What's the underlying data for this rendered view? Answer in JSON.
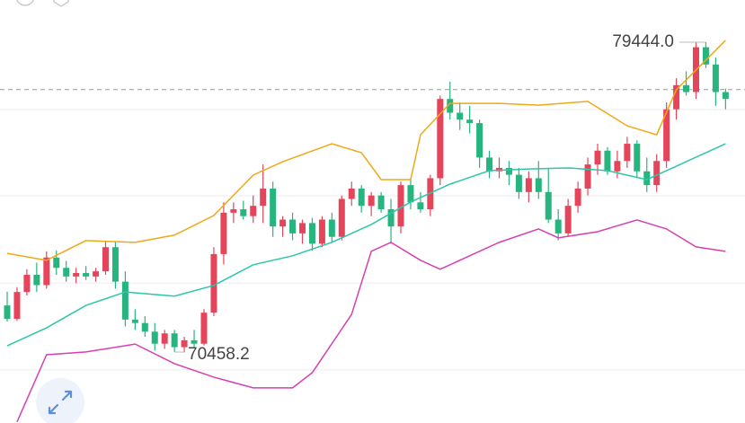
{
  "chart_data": {
    "type": "candlestick",
    "ylim": [
      68400,
      80670
    ],
    "ygrid": [
      77490,
      74990,
      72460,
      69940
    ],
    "price_line": 78070,
    "up_color": "#e5455a",
    "down_color": "#27b57f",
    "candles": [
      [
        71810,
        72210,
        71340,
        71420
      ],
      [
        71420,
        72340,
        71360,
        72200
      ],
      [
        72200,
        72860,
        72100,
        72700
      ],
      [
        72700,
        73050,
        72200,
        72400
      ],
      [
        72400,
        73380,
        72300,
        73200
      ],
      [
        73200,
        73400,
        72700,
        72900
      ],
      [
        72900,
        73100,
        72500,
        72650
      ],
      [
        72650,
        72900,
        72450,
        72750
      ],
      [
        72750,
        72950,
        72550,
        72650
      ],
      [
        72650,
        72900,
        72500,
        72800
      ],
      [
        72800,
        73650,
        72700,
        73500
      ],
      [
        73500,
        73650,
        72300,
        72500
      ],
      [
        72500,
        72800,
        71200,
        71400
      ],
      [
        71400,
        71700,
        71100,
        71300
      ],
      [
        71300,
        71500,
        70900,
        71050
      ],
      [
        71050,
        71300,
        70500,
        70700
      ],
      [
        70700,
        71100,
        70550,
        71000
      ],
      [
        71000,
        71100,
        70458.2,
        70600
      ],
      [
        70600,
        70900,
        70460,
        70800
      ],
      [
        70800,
        71100,
        70600,
        70700
      ],
      [
        70700,
        71700,
        70650,
        71600
      ],
      [
        71600,
        73500,
        71500,
        73300
      ],
      [
        73300,
        74800,
        73000,
        74500
      ],
      [
        74500,
        74800,
        74200,
        74600
      ],
      [
        74600,
        74850,
        74300,
        74400
      ],
      [
        74400,
        75000,
        74200,
        74700
      ],
      [
        74700,
        75900,
        74200,
        75200
      ],
      [
        75200,
        75400,
        73800,
        74100
      ],
      [
        74100,
        74400,
        73800,
        74300
      ],
      [
        74300,
        74500,
        73700,
        73900
      ],
      [
        73900,
        74300,
        73600,
        74200
      ],
      [
        74200,
        74350,
        73400,
        73600
      ],
      [
        73600,
        74400,
        73500,
        74300
      ],
      [
        74300,
        74500,
        73650,
        73800
      ],
      [
        73800,
        75000,
        73700,
        74900
      ],
      [
        74900,
        75400,
        74700,
        75200
      ],
      [
        75200,
        75300,
        74500,
        74700
      ],
      [
        74700,
        75100,
        74400,
        75000
      ],
      [
        75000,
        75100,
        74500,
        74600
      ],
      [
        74600,
        74900,
        73600,
        74100
      ],
      [
        74100,
        75400,
        73900,
        75300
      ],
      [
        75300,
        75500,
        74600,
        74800
      ],
      [
        74800,
        75100,
        74500,
        74600
      ],
      [
        74600,
        75600,
        74400,
        75500
      ],
      [
        75500,
        77900,
        75300,
        77800
      ],
      [
        77800,
        78300,
        77200,
        77400
      ],
      [
        77400,
        77700,
        76900,
        77200
      ],
      [
        77200,
        77600,
        76800,
        77100
      ],
      [
        77100,
        77200,
        75800,
        76100
      ],
      [
        76100,
        76300,
        75500,
        75700
      ],
      [
        75700,
        76100,
        75500,
        75800
      ],
      [
        75800,
        76000,
        75300,
        75600
      ],
      [
        75600,
        75800,
        74900,
        75100
      ],
      [
        75100,
        75700,
        74800,
        75500
      ],
      [
        75500,
        76000,
        74900,
        75100
      ],
      [
        75100,
        75800,
        74200,
        74300
      ],
      [
        74300,
        74600,
        73700,
        73900
      ],
      [
        73900,
        74900,
        73800,
        74700
      ],
      [
        74700,
        75400,
        74500,
        75200
      ],
      [
        75200,
        76100,
        75000,
        75900
      ],
      [
        75900,
        76500,
        75600,
        76300
      ],
      [
        76300,
        76400,
        75600,
        75700
      ],
      [
        75700,
        76300,
        75500,
        76000
      ],
      [
        76000,
        76700,
        75800,
        76500
      ],
      [
        76500,
        76600,
        75500,
        75700
      ],
      [
        75700,
        76100,
        75100,
        75300
      ],
      [
        75300,
        76200,
        75100,
        76000
      ],
      [
        76000,
        77700,
        75800,
        77500
      ],
      [
        77500,
        78400,
        77200,
        78200
      ],
      [
        78200,
        78600,
        77900,
        78000
      ],
      [
        78000,
        79444,
        77800,
        79300
      ],
      [
        79300,
        79444,
        78700,
        78800
      ],
      [
        78800,
        79000,
        77600,
        78000
      ],
      [
        78000,
        78100,
        77500,
        77800
      ]
    ],
    "bands": [
      {
        "color": "#f0a818",
        "x": [
          0,
          4,
          8,
          13,
          17,
          21,
          25,
          28,
          33,
          36,
          38,
          41,
          42,
          45,
          50,
          54,
          59,
          63,
          66,
          68,
          73
        ],
        "values": [
          73320,
          73120,
          73690,
          73640,
          73850,
          74420,
          75590,
          75980,
          76500,
          76240,
          75460,
          75460,
          76760,
          77670,
          77670,
          77620,
          77730,
          77020,
          76760,
          78070,
          79500
        ]
      },
      {
        "color": "#2cc6a8",
        "x": [
          0,
          4,
          8,
          12,
          17,
          21,
          25,
          29,
          33,
          37,
          41,
          45,
          49,
          53,
          57,
          61,
          65,
          68,
          73
        ],
        "values": [
          70640,
          71160,
          71810,
          72200,
          72080,
          72390,
          72990,
          73250,
          73640,
          74160,
          74810,
          75330,
          75720,
          75770,
          75800,
          75720,
          75460,
          75850,
          76500
        ]
      },
      {
        "color": "#d83fb0",
        "x": [
          1,
          4,
          8,
          13,
          17,
          21,
          25,
          29,
          31,
          35,
          37,
          39,
          42,
          44,
          47,
          50,
          54,
          56,
          60,
          64,
          67,
          70,
          73
        ],
        "values": [
          68430,
          70380,
          70460,
          70690,
          70120,
          69730,
          69420,
          69420,
          69860,
          71550,
          73380,
          73640,
          73120,
          72860,
          73250,
          73640,
          74030,
          73770,
          73950,
          74290,
          74030,
          73510,
          73380
        ]
      }
    ],
    "high_label": {
      "value": 79444,
      "label": "79444.0"
    },
    "low_label": {
      "value": 70458.2,
      "label": "70458.2"
    }
  }
}
